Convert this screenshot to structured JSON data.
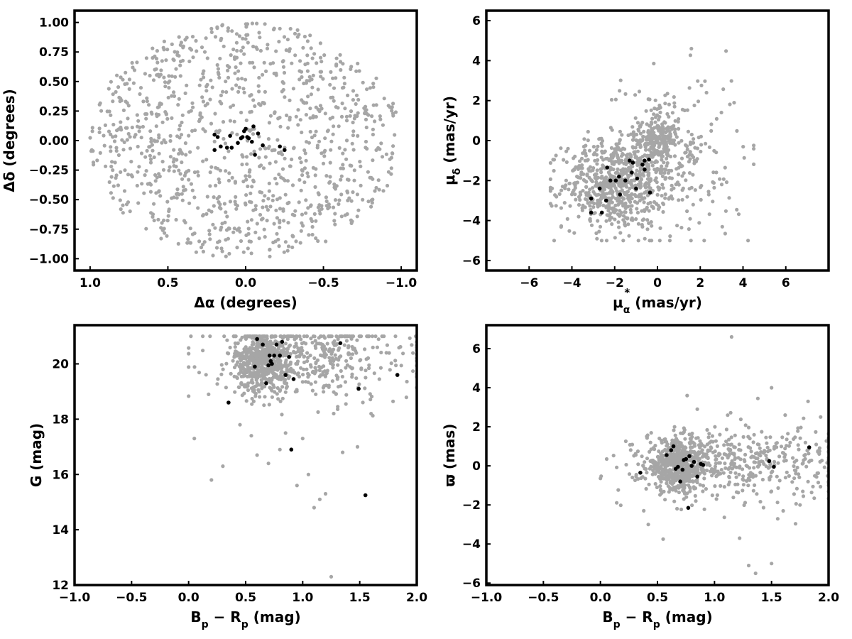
{
  "colors": {
    "background": "#ffffff",
    "field_stars": "#a6a6a6",
    "members": "#000000",
    "axes": "#000000"
  },
  "chart_data": [
    {
      "type": "scatter",
      "xlabel": "Δα (degrees)",
      "ylabel": "Δδ (degrees)",
      "xlim": [
        1.1,
        -1.1
      ],
      "ylim": [
        -1.1,
        1.1
      ],
      "x_reversed": true,
      "xticks": [
        1.0,
        0.5,
        0.0,
        -0.5,
        -1.0
      ],
      "xtick_labels": [
        "1.0",
        "0.5",
        "0.0",
        "−0.5",
        "−1.0"
      ],
      "yticks": [
        1.0,
        0.75,
        0.5,
        0.25,
        0.0,
        -0.25,
        -0.5,
        -0.75,
        -1.0
      ],
      "ytick_labels": [
        "1.00",
        "0.75",
        "0.50",
        "0.25",
        "0.00",
        "−0.25",
        "−0.50",
        "−0.75",
        "−1.00"
      ],
      "grid": false,
      "field": {
        "distribution": "disk",
        "center": [
          0.0,
          0.0
        ],
        "radius": 1.0,
        "count": 1050
      },
      "members": {
        "x": [
          0.2,
          0.18,
          0.16,
          0.1,
          0.09,
          0.05,
          0.03,
          0.02,
          0.01,
          0.0,
          -0.02,
          -0.04,
          -0.05,
          -0.06,
          -0.08,
          -0.11,
          -0.22,
          -0.25,
          0.12,
          0.2,
          -0.01
        ],
        "y": [
          -0.08,
          0.03,
          -0.05,
          0.04,
          -0.06,
          -0.02,
          0.02,
          0.03,
          0.08,
          0.1,
          0.02,
          -0.01,
          0.12,
          -0.12,
          0.06,
          -0.04,
          -0.05,
          -0.08,
          -0.06,
          0.05,
          0.03
        ]
      }
    },
    {
      "type": "scatter",
      "xlabel": "μα* (mas/yr)",
      "ylabel": "μδ (mas/yr)",
      "xlim": [
        -8,
        8
      ],
      "ylim": [
        -6.5,
        6.5
      ],
      "xticks": [
        -6,
        -4,
        -2,
        0,
        2,
        4,
        6
      ],
      "xtick_labels": [
        "−6",
        "−4",
        "−2",
        "0",
        "2",
        "4",
        "6"
      ],
      "yticks": [
        -6,
        -4,
        -2,
        0,
        2,
        4,
        6
      ],
      "ytick_labels": [
        "−6",
        "−4",
        "−2",
        "0",
        "2",
        "4",
        "6"
      ],
      "grid": false,
      "field": {
        "clumps": [
          {
            "center": [
              -2.0,
              -2.2
            ],
            "sx": 1.2,
            "sy": 1.1,
            "count": 620
          },
          {
            "center": [
              0.0,
              0.0
            ],
            "sx": 0.5,
            "sy": 0.7,
            "count": 240
          },
          {
            "center": [
              0.5,
              -1.0
            ],
            "sx": 1.8,
            "sy": 2.2,
            "count": 260
          }
        ],
        "xrange": [
          -5,
          4.5
        ],
        "yrange": [
          -5,
          4.6
        ]
      },
      "members": {
        "x": [
          -3.1,
          -3.1,
          -2.7,
          -2.6,
          -2.4,
          -2.35,
          -2.2,
          -1.95,
          -1.8,
          -1.75,
          -1.5,
          -1.3,
          -1.2,
          -1.15,
          -1.0,
          -0.95,
          -0.7,
          -0.6,
          -0.4,
          -0.35,
          -0.6
        ],
        "y": [
          -3.6,
          -2.9,
          -2.4,
          -3.6,
          -3.0,
          -1.35,
          -2.0,
          -2.0,
          -1.8,
          -2.7,
          -2.0,
          -1.0,
          -1.6,
          -1.1,
          -2.4,
          -1.9,
          -1.2,
          -1.0,
          -0.95,
          -2.6,
          -1.45
        ]
      }
    },
    {
      "type": "scatter",
      "xlabel": "B_p − R_p (mag)",
      "ylabel": "G (mag)",
      "xlim": [
        -1.0,
        2.0
      ],
      "ylim": [
        12,
        21.4
      ],
      "y_reversed": false,
      "xticks": [
        -1.0,
        -0.5,
        0.0,
        0.5,
        1.0,
        1.5,
        2.0
      ],
      "xtick_labels": [
        "−1.0",
        "−0.5",
        "0.0",
        "0.5",
        "1.0",
        "1.5",
        "2.0"
      ],
      "yticks": [
        12,
        14,
        16,
        18,
        20
      ],
      "ytick_labels": [
        "12",
        "14",
        "16",
        "18",
        "20"
      ],
      "grid": false,
      "field": {
        "clumps": [
          {
            "center": [
              0.65,
              20.1
            ],
            "sx": 0.12,
            "sy": 0.55,
            "count": 520
          },
          {
            "center": [
              1.1,
              20.2
            ],
            "sx": 0.45,
            "sy": 0.8,
            "count": 420
          }
        ],
        "xrange": [
          0.0,
          2.0
        ],
        "yrange": [
          12.3,
          21.0
        ],
        "extra": {
          "x": [
            0.02,
            0.05,
            0.2,
            0.3,
            0.55,
            0.8,
            1.05,
            1.1,
            1.15,
            1.25,
            1.48,
            1.6,
            1.2,
            0.7,
            0.95,
            1.35,
            1.0,
            0.85,
            0.6,
            0.45
          ],
          "y": [
            21.0,
            17.3,
            15.8,
            16.3,
            17.4,
            16.9,
            16.0,
            14.8,
            15.1,
            12.3,
            17.0,
            18.2,
            15.3,
            16.4,
            15.6,
            16.8,
            17.3,
            17.5,
            16.7,
            17.8
          ]
        }
      },
      "members": {
        "x": [
          0.35,
          0.58,
          0.6,
          0.65,
          0.68,
          0.7,
          0.71,
          0.73,
          0.75,
          0.77,
          0.8,
          0.82,
          0.85,
          0.88,
          0.9,
          0.92,
          1.33,
          1.49,
          1.55,
          1.83,
          0.72
        ],
        "y": [
          18.6,
          19.9,
          20.9,
          20.7,
          19.3,
          19.95,
          20.3,
          20.0,
          20.3,
          20.7,
          20.3,
          20.8,
          19.6,
          20.25,
          16.9,
          19.45,
          20.75,
          19.1,
          15.25,
          19.6,
          20.1
        ]
      }
    },
    {
      "type": "scatter",
      "xlabel": "B_p − R_p (mag)",
      "ylabel": "ϖ (mas)",
      "xlim": [
        -1.0,
        2.0
      ],
      "ylim": [
        -6.1,
        7.2
      ],
      "xticks": [
        -1.0,
        -0.5,
        0.0,
        0.5,
        1.0,
        1.5,
        2.0
      ],
      "xtick_labels": [
        "−1.0",
        "−0.5",
        "0.0",
        "0.5",
        "1.0",
        "1.5",
        "2.0"
      ],
      "yticks": [
        -6,
        -4,
        -2,
        0,
        2,
        4,
        6
      ],
      "ytick_labels": [
        "−6",
        "−4",
        "−2",
        "0",
        "2",
        "4",
        "6"
      ],
      "grid": false,
      "field": {
        "clumps": [
          {
            "center": [
              0.68,
              0.0
            ],
            "sx": 0.14,
            "sy": 0.65,
            "count": 560
          },
          {
            "center": [
              1.25,
              0.2
            ],
            "sx": 0.45,
            "sy": 0.9,
            "count": 420
          }
        ],
        "xrange": [
          0.0,
          2.0
        ],
        "yrange": [
          -5.6,
          6.7
        ],
        "extra": {
          "x": [
            0.55,
            0.76,
            1.15,
            1.22,
            1.3,
            1.36,
            1.38,
            1.5,
            1.5,
            1.82,
            0.42,
            0.38,
            1.75,
            1.93,
            1.62
          ],
          "y": [
            -3.75,
            3.6,
            6.6,
            -3.7,
            -5.1,
            -5.5,
            3.45,
            4.0,
            -5.0,
            3.3,
            -3.0,
            -2.3,
            -2.0,
            2.5,
            2.6
          ]
        }
      },
      "members": {
        "x": [
          0.35,
          0.58,
          0.62,
          0.64,
          0.68,
          0.7,
          0.72,
          0.73,
          0.75,
          0.77,
          0.8,
          0.82,
          0.85,
          0.88,
          0.9,
          1.48,
          1.52,
          1.83,
          0.66,
          0.78
        ],
        "y": [
          -0.35,
          0.55,
          0.8,
          1.0,
          -0.05,
          -0.8,
          -0.2,
          0.3,
          0.35,
          -2.15,
          0.0,
          0.2,
          -0.55,
          0.1,
          0.05,
          0.25,
          -0.05,
          0.95,
          -0.15,
          0.5
        ]
      }
    }
  ]
}
